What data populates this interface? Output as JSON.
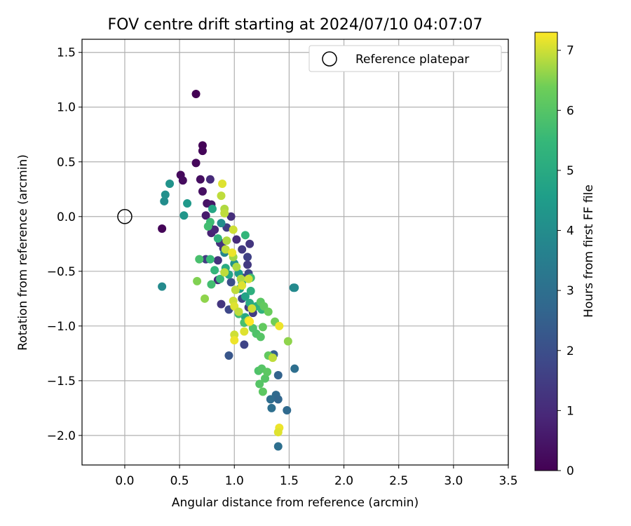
{
  "chart_data": {
    "type": "scatter",
    "title": "FOV centre drift starting at 2024/07/10 04:07:07",
    "xlabel": "Angular distance from reference (arcmin)",
    "ylabel": "Rotation from reference (arcmin)",
    "xlim": [
      -0.39,
      3.5
    ],
    "ylim": [
      -2.27,
      1.62
    ],
    "xticks": [
      0.0,
      0.5,
      1.0,
      1.5,
      2.0,
      2.5,
      3.0,
      3.5
    ],
    "xtick_labels": [
      "0.0",
      "0.5",
      "1.0",
      "1.5",
      "2.0",
      "2.5",
      "3.0",
      "3.5"
    ],
    "yticks": [
      -2.0,
      -1.5,
      -1.0,
      -0.5,
      0.0,
      0.5,
      1.0,
      1.5
    ],
    "ytick_labels": [
      "−2.0",
      "−1.5",
      "−1.0",
      "−0.5",
      "0.0",
      "0.5",
      "1.0",
      "1.5"
    ],
    "grid": true,
    "colormap": "viridis",
    "colorbar": {
      "label": "Hours from first FF file",
      "range": [
        0,
        7.3
      ],
      "ticks": [
        0,
        1,
        2,
        3,
        4,
        5,
        6,
        7
      ],
      "tick_labels": [
        "0",
        "1",
        "2",
        "3",
        "4",
        "5",
        "6",
        "7"
      ]
    },
    "legend": {
      "position": "top-right",
      "entries": [
        "Reference platepar"
      ]
    },
    "reference_point": {
      "x": 0.0,
      "y": 0.0
    },
    "series": [
      {
        "name": "",
        "points": [
          [
            0.65,
            1.12,
            0.0
          ],
          [
            0.71,
            0.65,
            0.05
          ],
          [
            0.71,
            0.6,
            0.1
          ],
          [
            0.65,
            0.49,
            0.15
          ],
          [
            0.51,
            0.38,
            0.2
          ],
          [
            0.53,
            0.33,
            0.25
          ],
          [
            0.69,
            0.34,
            0.3
          ],
          [
            0.71,
            0.23,
            0.35
          ],
          [
            0.75,
            0.12,
            0.4
          ],
          [
            0.79,
            0.11,
            0.5
          ],
          [
            0.74,
            0.01,
            0.6
          ],
          [
            0.34,
            -0.11,
            0.1
          ],
          [
            0.77,
            -0.09,
            0.7
          ],
          [
            0.79,
            -0.15,
            0.8
          ],
          [
            0.78,
            0.34,
            1.0
          ],
          [
            0.82,
            -0.12,
            0.9
          ],
          [
            0.97,
            0.0,
            1.1
          ],
          [
            0.87,
            -0.24,
            1.2
          ],
          [
            0.9,
            -0.29,
            1.3
          ],
          [
            0.93,
            -0.1,
            1.5
          ],
          [
            1.02,
            -0.21,
            1.0
          ],
          [
            1.07,
            -0.3,
            1.4
          ],
          [
            0.74,
            -0.39,
            1.5
          ],
          [
            0.85,
            -0.4,
            1.2
          ],
          [
            0.85,
            -0.58,
            1.0
          ],
          [
            1.14,
            -0.25,
            1.3
          ],
          [
            1.12,
            -0.37,
            1.6
          ],
          [
            1.12,
            -0.44,
            1.4
          ],
          [
            1.08,
            -0.56,
            1.6
          ],
          [
            1.13,
            -0.52,
            1.8
          ],
          [
            0.88,
            -0.8,
            1.3
          ],
          [
            0.95,
            -0.85,
            1.8
          ],
          [
            0.97,
            -0.6,
            2.0
          ],
          [
            1.07,
            -0.75,
            1.7
          ],
          [
            1.13,
            -0.83,
            1.5
          ],
          [
            1.17,
            -0.88,
            1.5
          ],
          [
            1.09,
            -1.17,
            1.7
          ],
          [
            0.95,
            -1.27,
            2.2
          ],
          [
            1.36,
            -1.26,
            2.5
          ],
          [
            1.4,
            -1.45,
            2.6
          ],
          [
            1.38,
            -1.63,
            2.8
          ],
          [
            1.33,
            -1.67,
            2.9
          ],
          [
            1.4,
            -1.67,
            2.7
          ],
          [
            1.34,
            -1.75,
            3.0
          ],
          [
            1.48,
            -1.77,
            2.8
          ],
          [
            1.4,
            -2.1,
            3.0
          ],
          [
            1.55,
            -1.39,
            3.0
          ],
          [
            1.54,
            -0.65,
            3.8
          ],
          [
            1.55,
            -0.65,
            3.9
          ],
          [
            0.34,
            -0.64,
            3.9
          ],
          [
            0.36,
            0.14,
            4.0
          ],
          [
            0.37,
            0.2,
            4.1
          ],
          [
            0.41,
            0.3,
            4.2
          ],
          [
            0.54,
            0.01,
            4.3
          ],
          [
            0.57,
            0.12,
            4.4
          ],
          [
            0.8,
            0.07,
            4.8
          ],
          [
            0.88,
            -0.06,
            4.0
          ],
          [
            0.91,
            -0.33,
            3.8
          ],
          [
            1.0,
            -0.43,
            4.2
          ],
          [
            1.04,
            -0.52,
            4.5
          ],
          [
            1.05,
            -0.66,
            4.6
          ],
          [
            1.1,
            -0.73,
            4.7
          ],
          [
            1.1,
            -0.92,
            4.9
          ],
          [
            1.14,
            -0.79,
            5.0
          ],
          [
            1.2,
            -0.82,
            5.2
          ],
          [
            1.25,
            -0.85,
            5.3
          ],
          [
            1.15,
            -0.68,
            5.2
          ],
          [
            1.07,
            -0.6,
            5.1
          ],
          [
            0.95,
            -0.53,
            4.8
          ],
          [
            0.92,
            -0.47,
            5.0
          ],
          [
            0.85,
            -0.2,
            5.3
          ],
          [
            0.87,
            -0.57,
            5.5
          ],
          [
            0.82,
            -0.49,
            5.4
          ],
          [
            0.78,
            -0.39,
            5.5
          ],
          [
            0.79,
            -0.62,
            5.7
          ],
          [
            0.68,
            -0.39,
            5.8
          ],
          [
            0.78,
            -0.05,
            5.6
          ],
          [
            0.76,
            -0.09,
            5.7
          ],
          [
            1.1,
            -0.17,
            5.4
          ],
          [
            1.15,
            -0.56,
            5.6
          ],
          [
            1.04,
            -0.89,
            5.6
          ],
          [
            1.09,
            -0.97,
            5.8
          ],
          [
            1.17,
            -1.02,
            5.9
          ],
          [
            1.2,
            -1.07,
            5.9
          ],
          [
            1.24,
            -1.1,
            6.0
          ],
          [
            1.22,
            -1.41,
            5.9
          ],
          [
            1.25,
            -1.39,
            6.0
          ],
          [
            1.28,
            -1.48,
            6.0
          ],
          [
            1.26,
            -1.6,
            6.1
          ],
          [
            1.23,
            -1.53,
            6.0
          ],
          [
            1.3,
            -1.42,
            6.1
          ],
          [
            1.31,
            -1.27,
            6.2
          ],
          [
            1.24,
            -0.78,
            6.1
          ],
          [
            1.27,
            -0.82,
            6.2
          ],
          [
            1.31,
            -0.87,
            6.3
          ],
          [
            1.26,
            -1.01,
            6.2
          ],
          [
            1.37,
            -0.96,
            6.4
          ],
          [
            1.49,
            -1.14,
            6.6
          ],
          [
            1.35,
            -1.29,
            6.9
          ],
          [
            0.66,
            -0.59,
            6.5
          ],
          [
            0.73,
            -0.75,
            6.6
          ],
          [
            0.99,
            -0.37,
            6.7
          ],
          [
            1.02,
            -0.46,
            6.8
          ],
          [
            1.06,
            -0.57,
            6.8
          ],
          [
            1.01,
            -0.67,
            6.9
          ],
          [
            0.99,
            -0.77,
            7.0
          ],
          [
            1.0,
            -0.82,
            7.1
          ],
          [
            1.04,
            -0.87,
            6.9
          ],
          [
            1.13,
            -0.95,
            7.1
          ],
          [
            1.16,
            -0.84,
            7.0
          ],
          [
            1.09,
            -1.05,
            7.1
          ],
          [
            1.0,
            -1.08,
            7.0
          ],
          [
            1.0,
            -1.13,
            7.2
          ],
          [
            1.41,
            -1.0,
            7.2
          ],
          [
            1.41,
            -1.93,
            7.2
          ],
          [
            1.4,
            -1.97,
            7.1
          ],
          [
            0.89,
            0.3,
            7.1
          ],
          [
            0.88,
            0.19,
            6.9
          ],
          [
            0.91,
            0.07,
            6.8
          ],
          [
            0.91,
            0.03,
            6.9
          ],
          [
            0.99,
            -0.12,
            7.0
          ],
          [
            0.93,
            -0.22,
            6.8
          ],
          [
            0.92,
            -0.3,
            6.9
          ],
          [
            0.98,
            -0.33,
            7.2
          ],
          [
            0.91,
            -0.51,
            6.9
          ],
          [
            1.07,
            -0.63,
            7.1
          ],
          [
            1.13,
            -0.57,
            7.0
          ],
          [
            1.14,
            -0.96,
            7.3
          ]
        ]
      }
    ]
  }
}
